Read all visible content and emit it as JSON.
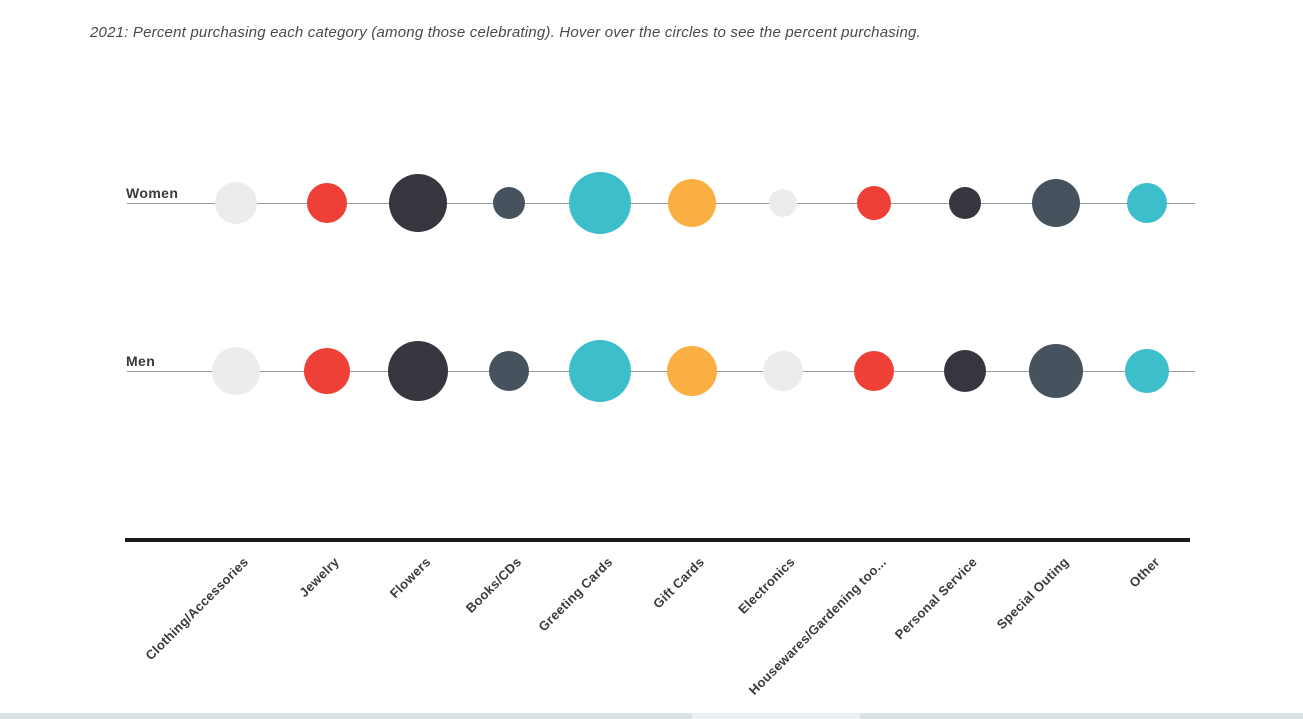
{
  "title": "2021: Percent purchasing each category (among those celebrating). Hover over the circles to see the percent purchasing.",
  "chart_data": {
    "type": "scatter",
    "subtype": "bubble-rows",
    "categories": [
      "Clothing/Accessories",
      "Jewelry",
      "Flowers",
      "Books/CDs",
      "Greeting Cards",
      "Gift Cards",
      "Electronics",
      "Housewares/Gardening too...",
      "Personal Service",
      "Special Outing",
      "Other"
    ],
    "series": [
      {
        "name": "Women",
        "bubble_radius_px": [
          21,
          20,
          29,
          16,
          31,
          24,
          14,
          17,
          16,
          24,
          20
        ]
      },
      {
        "name": "Men",
        "bubble_radius_px": [
          24,
          23,
          30,
          20,
          31,
          25,
          20,
          20,
          21,
          27,
          22
        ]
      }
    ],
    "category_colors": [
      "#ECECEB",
      "#EE4037",
      "#38353E",
      "#47525F",
      "#3DBFCB",
      "#FBAE42",
      "#ECECEB",
      "#EE4037",
      "#38353E",
      "#47525F",
      "#3DBFCB"
    ],
    "value_encoding": "bubble size = percent purchasing (exact percent shown on hover only)",
    "legend": "none",
    "xlabel": "",
    "ylabel": ""
  },
  "colors": {
    "background": "#FFFFFF",
    "row_line": "#999999",
    "axis_line": "#1C1C1C",
    "label_text": "#3A3A3A",
    "title_text": "#4A4A4A",
    "footer_bar": "#D9E3E6",
    "footer_bar_light": "#EAF1F3"
  }
}
